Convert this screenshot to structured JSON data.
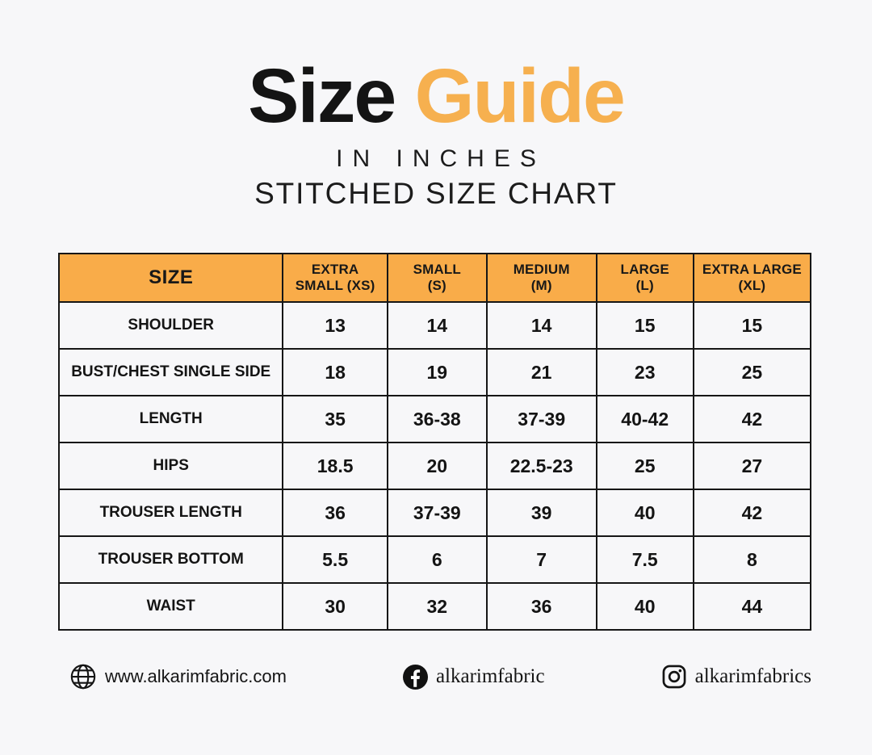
{
  "colors": {
    "background": "#f7f7f9",
    "text": "#141414",
    "title_orange": "#f6b04f",
    "accent_orange": "#f9ac49"
  },
  "title": {
    "word1": "Size",
    "word2": "Guide",
    "subtitle": "IN INCHES",
    "chart_label": "STITCHED SIZE CHART"
  },
  "chart_data": {
    "type": "table",
    "title": "Size Guide in inches — Stitched Size Chart",
    "columns": [
      "SIZE",
      "EXTRA SMALL (XS)",
      "SMALL (S)",
      "MEDIUM (M)",
      "LARGE (L)",
      "EXTRA LARGE (XL)"
    ],
    "header_lines": [
      [
        "SIZE"
      ],
      [
        "EXTRA",
        "SMALL (XS)"
      ],
      [
        "SMALL",
        "(S)"
      ],
      [
        "MEDIUM",
        "(M)"
      ],
      [
        "LARGE",
        "(L)"
      ],
      [
        "EXTRA LARGE",
        "(XL)"
      ]
    ],
    "rows": [
      {
        "label": "SHOULDER",
        "values": [
          "13",
          "14",
          "14",
          "15",
          "15"
        ]
      },
      {
        "label": "BUST/CHEST SINGLE SIDE",
        "values": [
          "18",
          "19",
          "21",
          "23",
          "25"
        ]
      },
      {
        "label": "LENGTH",
        "values": [
          "35",
          "36-38",
          "37-39",
          "40-42",
          "42"
        ]
      },
      {
        "label": "HIPS",
        "values": [
          "18.5",
          "20",
          "22.5-23",
          "25",
          "27"
        ]
      },
      {
        "label": "TROUSER LENGTH",
        "values": [
          "36",
          "37-39",
          "39",
          "40",
          "42"
        ]
      },
      {
        "label": "TROUSER BOTTOM",
        "values": [
          "5.5",
          "6",
          "7",
          "7.5",
          "8"
        ]
      },
      {
        "label": "WAIST",
        "values": [
          "30",
          "32",
          "36",
          "40",
          "44"
        ]
      }
    ],
    "column_widths_percent": [
      29.8,
      13.9,
      13.2,
      14.6,
      12.9,
      15.6
    ]
  },
  "footer": {
    "website": "www.alkarimfabric.com",
    "facebook_handle": "alkarimfabric",
    "instagram_handle": "alkarimfabrics"
  }
}
